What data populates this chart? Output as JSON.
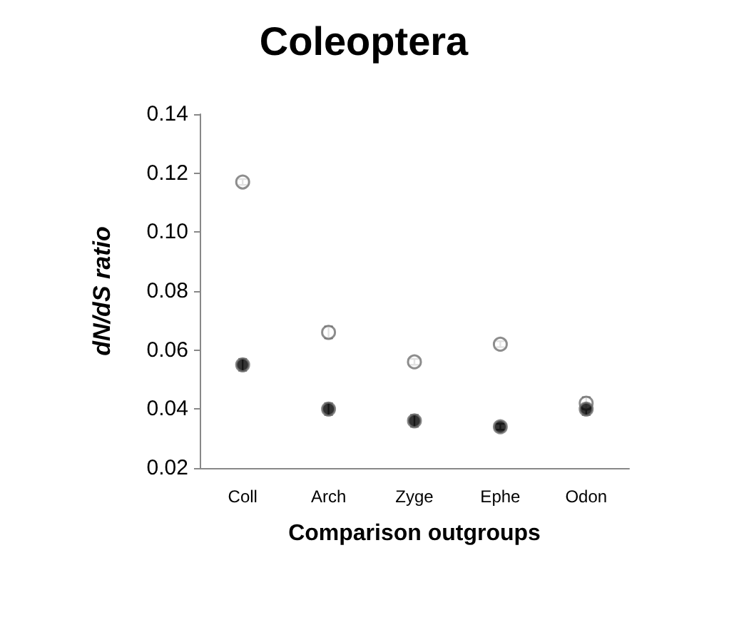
{
  "chart_data": {
    "type": "scatter",
    "title": "Coleoptera",
    "xlabel": "Comparison outgroups",
    "ylabel": "dN/dS ratio",
    "categories": [
      "Coll",
      "Arch",
      "Zyge",
      "Ephe",
      "Odon"
    ],
    "series": [
      {
        "color": "#ffffff",
        "values": [
          0.117,
          0.066,
          0.056,
          0.062,
          0.042
        ],
        "errors": [
          0.001,
          0.002,
          0.001,
          0.001,
          0.002
        ]
      },
      {
        "color": "#000000",
        "values": [
          0.055,
          0.04,
          0.036,
          0.034,
          0.04
        ],
        "errors": [
          0.002,
          0.002,
          0.002,
          0.001,
          0.002
        ]
      }
    ],
    "ylim": [
      0.02,
      0.14
    ],
    "yticks": [
      0.02,
      0.04,
      0.06,
      0.08,
      {
        "value": 0.1,
        "label": "0.10"
      },
      0.12,
      0.14
    ],
    "marker": "circle",
    "grid": false
  }
}
